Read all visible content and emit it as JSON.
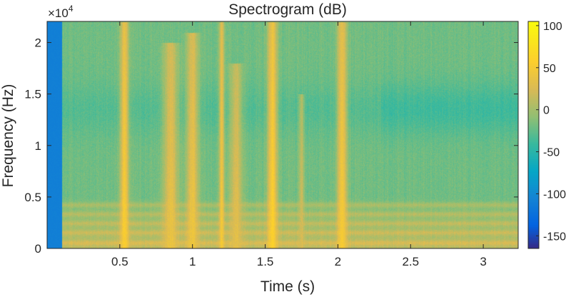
{
  "chart_data": {
    "type": "heatmap",
    "title": "Spectrogram (dB)",
    "xlabel": "Time (s)",
    "ylabel": "Frequency (Hz)",
    "y_exponent_label": "×10",
    "y_exponent_power": "4",
    "xlim": [
      0,
      3.24
    ],
    "ylim": [
      0,
      22050
    ],
    "x_ticks": [
      {
        "value": 0.5,
        "label": "0.5"
      },
      {
        "value": 1,
        "label": "1"
      },
      {
        "value": 1.5,
        "label": "1.5"
      },
      {
        "value": 2,
        "label": "2"
      },
      {
        "value": 2.5,
        "label": "2.5"
      },
      {
        "value": 3,
        "label": "3"
      }
    ],
    "y_ticks": [
      {
        "value": 0,
        "label": "0"
      },
      {
        "value": 5000,
        "label": "0.5"
      },
      {
        "value": 10000,
        "label": "1"
      },
      {
        "value": 15000,
        "label": "1.5"
      },
      {
        "value": 20000,
        "label": "2"
      }
    ],
    "colorbar": {
      "colormap": "parula",
      "clim": [
        -165,
        105
      ],
      "ticks": [
        {
          "value": 100,
          "label": "100"
        },
        {
          "value": 50,
          "label": "50"
        },
        {
          "value": 0,
          "label": "0"
        },
        {
          "value": -50,
          "label": "-50"
        },
        {
          "value": -100,
          "label": "-100"
        },
        {
          "value": -150,
          "label": "-150"
        }
      ]
    },
    "background_level_db": -20,
    "silent_segment": {
      "t_start": 0,
      "t_end": 0.1,
      "level_db": -110
    },
    "loud_bursts": [
      {
        "t_center": 0.53,
        "t_width": 0.07,
        "f_max": 22000,
        "level_db": 55
      },
      {
        "t_center": 0.85,
        "t_width": 0.12,
        "f_max": 20000,
        "level_db": 40
      },
      {
        "t_center": 1.0,
        "t_width": 0.1,
        "f_max": 21000,
        "level_db": 45
      },
      {
        "t_center": 1.2,
        "t_width": 0.04,
        "f_max": 22000,
        "level_db": 50
      },
      {
        "t_center": 1.3,
        "t_width": 0.1,
        "f_max": 18000,
        "level_db": 35
      },
      {
        "t_center": 1.55,
        "t_width": 0.08,
        "f_max": 22000,
        "level_db": 60
      },
      {
        "t_center": 1.75,
        "t_width": 0.04,
        "f_max": 15000,
        "level_db": 25
      },
      {
        "t_center": 2.03,
        "t_width": 0.08,
        "f_max": 22000,
        "level_db": 55
      }
    ],
    "low_frequency_bands_hz": [
      500,
      1500,
      2400,
      3300,
      4200
    ],
    "grid": false
  }
}
